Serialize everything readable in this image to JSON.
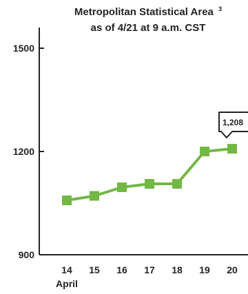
{
  "chart_data": {
    "type": "line",
    "title_line1": "Metropolitan Statistical Area",
    "title_sup": "3",
    "title_line2": "as of 4/21 at 9 a.m. CST",
    "x": [
      "14",
      "15",
      "16",
      "17",
      "18",
      "19",
      "20"
    ],
    "xlabel": "April",
    "ylabel": "",
    "ylim": [
      900,
      1500
    ],
    "y_ticks": [
      "900",
      "1200",
      "1500"
    ],
    "series": [
      {
        "values": [
          1058,
          1071,
          1096,
          1106,
          1106,
          1200,
          1208
        ]
      }
    ],
    "callout": {
      "label": "1,208",
      "index": 6
    },
    "grid": false,
    "color": "#72b843"
  }
}
